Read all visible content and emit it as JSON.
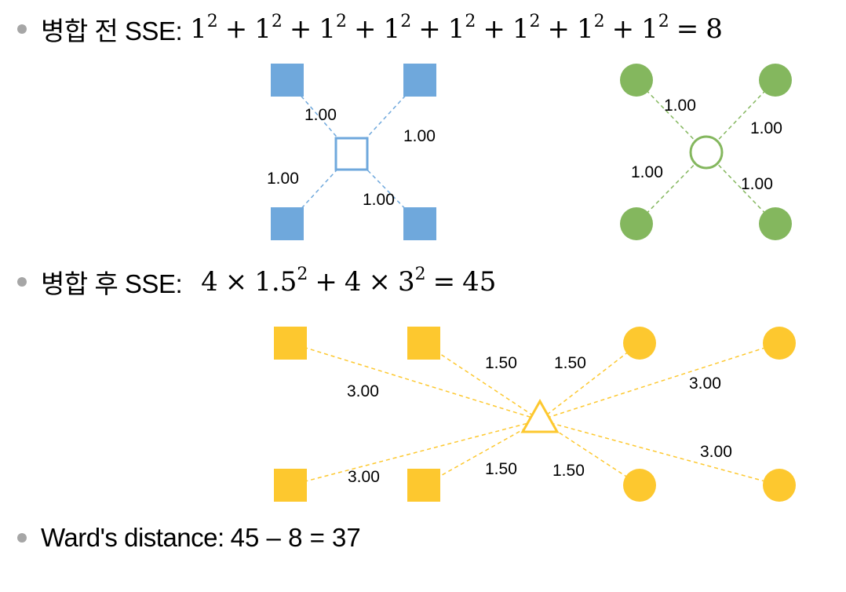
{
  "line1": {
    "label": "병합 전 SSE:",
    "terms": [
      {
        "base": "1",
        "exp": "2"
      },
      {
        "base": "1",
        "exp": "2"
      },
      {
        "base": "1",
        "exp": "2"
      },
      {
        "base": "1",
        "exp": "2"
      },
      {
        "base": "1",
        "exp": "2"
      },
      {
        "base": "1",
        "exp": "2"
      },
      {
        "base": "1",
        "exp": "2"
      },
      {
        "base": "1",
        "exp": "2"
      }
    ],
    "result": "8"
  },
  "line2": {
    "label": "병합 후 SSE:",
    "expr": [
      {
        "text": "4"
      },
      {
        "op": "×"
      },
      {
        "text": "1.5",
        "exp": "2"
      },
      {
        "op": "+"
      },
      {
        "text": "4"
      },
      {
        "op": "×"
      },
      {
        "text": "3",
        "exp": "2"
      },
      {
        "op": "="
      },
      {
        "text": "45"
      }
    ]
  },
  "line3": {
    "label": "Ward's distance:",
    "expr": "45 – 8 = 37"
  },
  "colors": {
    "blue": "#6fa8dc",
    "green": "#84b75e",
    "yellow": "#fdc82f",
    "bullet": "#a6a6a6"
  },
  "diagram": {
    "blue_cluster": {
      "labels": [
        "1.00",
        "1.00",
        "1.00",
        "1.00"
      ]
    },
    "green_cluster": {
      "labels": [
        "1.00",
        "1.00",
        "1.00",
        "1.00"
      ]
    },
    "merged_cluster": {
      "labels": [
        "1.50",
        "1.50",
        "3.00",
        "3.00",
        "3.00",
        "1.50",
        "1.50",
        "3.00"
      ]
    }
  }
}
